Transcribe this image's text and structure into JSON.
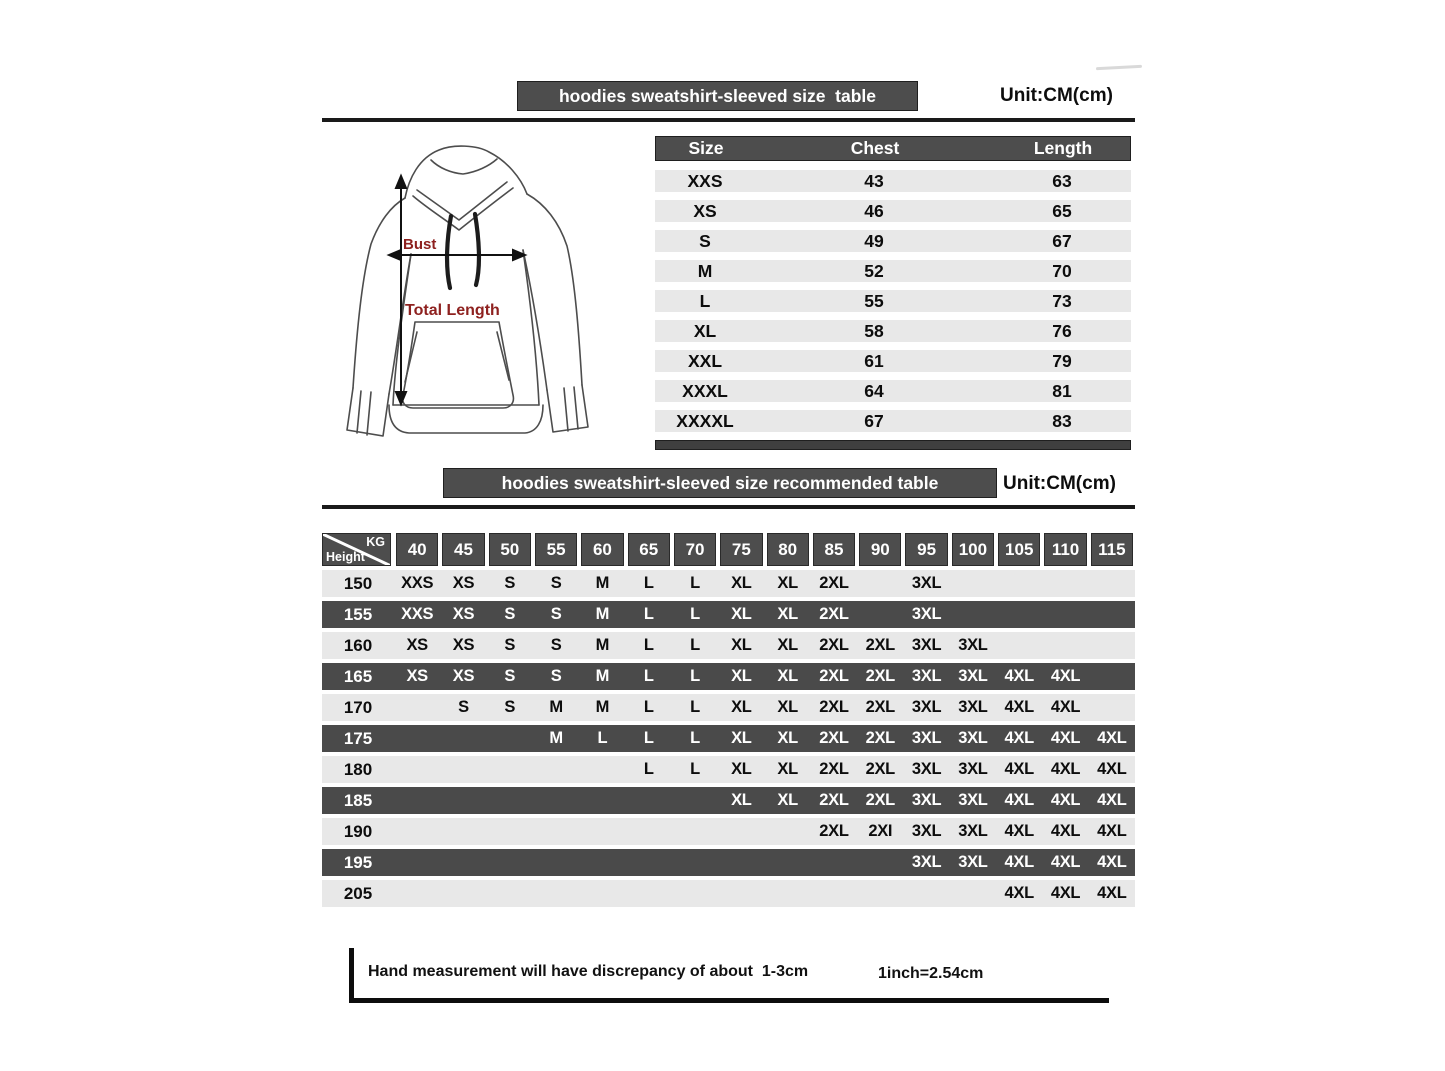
{
  "size_table": {
    "title": "hoodies sweatshirt-sleeved size  table",
    "unit": "Unit:CM(cm)",
    "columns": [
      "Size",
      "Chest",
      "Length"
    ],
    "rows": [
      {
        "size": "XXS",
        "chest": "43",
        "length": "63"
      },
      {
        "size": "XS",
        "chest": "46",
        "length": "65"
      },
      {
        "size": "S",
        "chest": "49",
        "length": "67"
      },
      {
        "size": "M",
        "chest": "52",
        "length": "70"
      },
      {
        "size": "L",
        "chest": "55",
        "length": "73"
      },
      {
        "size": "XL",
        "chest": "58",
        "length": "76"
      },
      {
        "size": "XXL",
        "chest": "61",
        "length": "79"
      },
      {
        "size": "XXXL",
        "chest": "64",
        "length": "81"
      },
      {
        "size": "XXXXL",
        "chest": "67",
        "length": "83"
      }
    ]
  },
  "diagram": {
    "bust_label": "Bust",
    "total_length_label": "Total Length"
  },
  "recommended_table": {
    "title": "hoodies sweatshirt-sleeved size recommended table",
    "unit": "Unit:CM(cm)",
    "corner_top": "KG",
    "corner_bottom": "Height",
    "weights": [
      "40",
      "45",
      "50",
      "55",
      "60",
      "65",
      "70",
      "75",
      "80",
      "85",
      "90",
      "95",
      "100",
      "105",
      "110",
      "115"
    ],
    "rows": [
      {
        "height": "150",
        "shade": "light",
        "cells": [
          "XXS",
          "XS",
          "S",
          "S",
          "M",
          "L",
          "L",
          "XL",
          "XL",
          "2XL",
          "",
          "3XL",
          "",
          "",
          "",
          ""
        ]
      },
      {
        "height": "155",
        "shade": "dark",
        "cells": [
          "XXS",
          "XS",
          "S",
          "S",
          "M",
          "L",
          "L",
          "XL",
          "XL",
          "2XL",
          "",
          "3XL",
          "",
          "",
          "",
          ""
        ]
      },
      {
        "height": "160",
        "shade": "light",
        "cells": [
          "XS",
          "XS",
          "S",
          "S",
          "M",
          "L",
          "L",
          "XL",
          "XL",
          "2XL",
          "2XL",
          "3XL",
          "3XL",
          "",
          "",
          ""
        ]
      },
      {
        "height": "165",
        "shade": "dark",
        "cells": [
          "XS",
          "XS",
          "S",
          "S",
          "M",
          "L",
          "L",
          "XL",
          "XL",
          "2XL",
          "2XL",
          "3XL",
          "3XL",
          "4XL",
          "4XL",
          ""
        ]
      },
      {
        "height": "170",
        "shade": "light",
        "cells": [
          "",
          "S",
          "S",
          "M",
          "M",
          "L",
          "L",
          "XL",
          "XL",
          "2XL",
          "2XL",
          "3XL",
          "3XL",
          "4XL",
          "4XL",
          ""
        ]
      },
      {
        "height": "175",
        "shade": "dark",
        "cells": [
          "",
          "",
          "",
          "M",
          "L",
          "L",
          "L",
          "XL",
          "XL",
          "2XL",
          "2XL",
          "3XL",
          "3XL",
          "4XL",
          "4XL",
          "4XL"
        ]
      },
      {
        "height": "180",
        "shade": "light",
        "cells": [
          "",
          "",
          "",
          "",
          "",
          "L",
          "L",
          "XL",
          "XL",
          "2XL",
          "2XL",
          "3XL",
          "3XL",
          "4XL",
          "4XL",
          "4XL"
        ]
      },
      {
        "height": "185",
        "shade": "dark",
        "cells": [
          "",
          "",
          "",
          "",
          "",
          "",
          "",
          "XL",
          "XL",
          "2XL",
          "2XL",
          "3XL",
          "3XL",
          "4XL",
          "4XL",
          "4XL"
        ]
      },
      {
        "height": "190",
        "shade": "light",
        "cells": [
          "",
          "",
          "",
          "",
          "",
          "",
          "",
          "",
          "",
          "2XL",
          "2XI",
          "3XL",
          "3XL",
          "4XL",
          "4XL",
          "4XL"
        ]
      },
      {
        "height": "195",
        "shade": "dark",
        "cells": [
          "",
          "",
          "",
          "",
          "",
          "",
          "",
          "",
          "",
          "",
          "",
          "3XL",
          "3XL",
          "4XL",
          "4XL",
          "4XL"
        ]
      },
      {
        "height": "205",
        "shade": "light",
        "cells": [
          "",
          "",
          "",
          "",
          "",
          "",
          "",
          "",
          "",
          "",
          "",
          "",
          "",
          "4XL",
          "4XL",
          "4XL"
        ]
      }
    ]
  },
  "footer": {
    "note": "Hand measurement will have discrepancy of about  1-3cm",
    "conversion": "1inch=2.54cm"
  },
  "colors": {
    "bar_gray": "#4d4d4d",
    "dark_row_gray": "#4a4a4a",
    "light_row_gray": "#e8e8e8",
    "accent_red": "#8e211f"
  }
}
